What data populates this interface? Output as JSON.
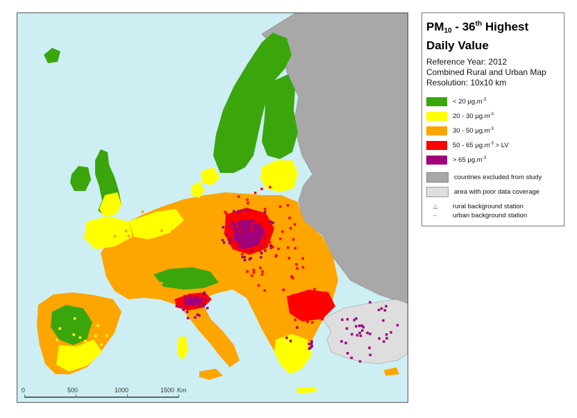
{
  "legend": {
    "title_prefix": "PM",
    "title_sub": "10",
    "title_mid": " - 36",
    "title_sup": "th",
    "title_suffix": " Highest",
    "title_line2": "Daily Value",
    "reference_year": "Reference Year: 2012",
    "map_type": "Combined Rural and Urban Map",
    "resolution": "Resolution: 10x10 km",
    "classes": [
      {
        "label": "<  20  µg.m",
        "sup": "-3",
        "tail": "",
        "color": "#3aa60c"
      },
      {
        "label": "20 - 30  µg.m",
        "sup": "-3",
        "tail": "",
        "color": "#ffff00"
      },
      {
        "label": "30 - 50  µg.m",
        "sup": "-3",
        "tail": "",
        "color": "#ffa500"
      },
      {
        "label": "50 - 65  µg.m",
        "sup": "-3",
        "tail": "  > LV",
        "color": "#ff0000"
      },
      {
        "label": ">  65  µg.m",
        "sup": "-3",
        "tail": "",
        "color": "#a0007a"
      }
    ],
    "excluded_label": "countries excluded from study",
    "excluded_color": "#a8a8a8",
    "poor_coverage_label": "area with poor data coverage",
    "poor_coverage_color": "#dedede",
    "rural_station_label": "rural background station",
    "urban_station_label": "urban background station",
    "rural_symbol": "△",
    "urban_symbol": "–"
  },
  "scale": {
    "ticks": [
      "0",
      "500",
      "1000",
      "1500"
    ],
    "unit": "Km"
  },
  "colors": {
    "sea": "#cdeff3",
    "green": "#3aa60c",
    "yellow": "#ffff00",
    "orange": "#ffa500",
    "red": "#ff0000",
    "purple": "#a0007a",
    "excluded": "#a8a8a8",
    "poor": "#dedede"
  }
}
